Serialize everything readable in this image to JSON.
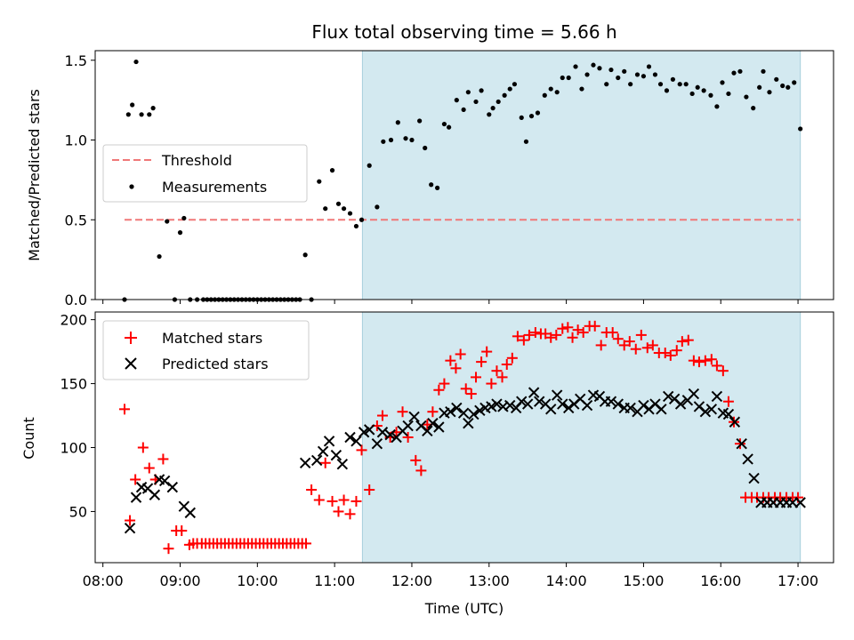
{
  "chart_data": [
    {
      "type": "scatter",
      "title": "Flux total observing time = 5.66 h",
      "xlabel": "",
      "ylabel": "Matched/Predicted stars",
      "ylim": [
        0,
        1.56
      ],
      "yticks": [
        0,
        0.5,
        1.0,
        1.5
      ],
      "ytick_labels": [
        "0.0",
        "0.5",
        "1.0",
        "1.5"
      ],
      "legend_position": "center-left",
      "shaded_region": {
        "x_start": 11.36,
        "x_end": 17.03,
        "color": "#d3e9f0"
      },
      "series": [
        {
          "name": "Threshold",
          "style": "dashed-line",
          "color": "#f07878",
          "x": [
            8.28,
            17.03
          ],
          "y": [
            0.5,
            0.5
          ]
        },
        {
          "name": "Measurements",
          "style": "dot",
          "color": "#000000",
          "x": [
            8.28,
            8.33,
            8.38,
            8.43,
            8.5,
            8.6,
            8.65,
            8.73,
            8.83,
            8.93,
            9.0,
            9.05,
            9.13,
            9.22,
            9.3,
            9.35,
            9.4,
            9.45,
            9.5,
            9.55,
            9.6,
            9.65,
            9.7,
            9.75,
            9.8,
            9.85,
            9.9,
            9.95,
            10.0,
            10.05,
            10.1,
            10.15,
            10.2,
            10.25,
            10.3,
            10.35,
            10.4,
            10.45,
            10.5,
            10.55,
            10.62,
            10.7,
            10.8,
            10.88,
            10.97,
            11.05,
            11.12,
            11.2,
            11.28,
            11.35,
            11.45,
            11.55,
            11.63,
            11.73,
            11.82,
            11.92,
            12.0,
            12.1,
            12.17,
            12.25,
            12.33,
            12.42,
            12.48,
            12.58,
            12.67,
            12.73,
            12.83,
            12.9,
            13.0,
            13.05,
            13.12,
            13.2,
            13.27,
            13.33,
            13.42,
            13.48,
            13.55,
            13.63,
            13.72,
            13.8,
            13.88,
            13.95,
            14.03,
            14.12,
            14.2,
            14.27,
            14.35,
            14.43,
            14.52,
            14.58,
            14.67,
            14.75,
            14.83,
            14.92,
            15.0,
            15.07,
            15.15,
            15.22,
            15.3,
            15.38,
            15.47,
            15.55,
            15.63,
            15.7,
            15.78,
            15.87,
            15.95,
            16.02,
            16.1,
            16.17,
            16.25,
            16.33,
            16.42,
            16.5,
            16.55,
            16.63,
            16.72,
            16.8,
            16.87,
            16.95,
            17.03
          ],
          "y": [
            0,
            1.16,
            1.22,
            1.49,
            1.16,
            1.16,
            1.2,
            0.27,
            0.49,
            0,
            0.42,
            0.51,
            0,
            0,
            0,
            0,
            0,
            0,
            0,
            0,
            0,
            0,
            0,
            0,
            0,
            0,
            0,
            0,
            0,
            0,
            0,
            0,
            0,
            0,
            0,
            0,
            0,
            0,
            0,
            0,
            0.28,
            0,
            0.74,
            0.57,
            0.81,
            0.6,
            0.57,
            0.54,
            0.46,
            0.5,
            0.84,
            0.58,
            0.99,
            1.0,
            1.11,
            1.01,
            1.0,
            1.12,
            0.95,
            0.72,
            0.7,
            1.1,
            1.08,
            1.25,
            1.19,
            1.3,
            1.24,
            1.31,
            1.16,
            1.2,
            1.24,
            1.28,
            1.32,
            1.35,
            1.14,
            0.99,
            1.15,
            1.17,
            1.28,
            1.32,
            1.3,
            1.39,
            1.39,
            1.46,
            1.32,
            1.41,
            1.47,
            1.45,
            1.35,
            1.44,
            1.39,
            1.43,
            1.35,
            1.41,
            1.4,
            1.46,
            1.41,
            1.35,
            1.31,
            1.38,
            1.35,
            1.35,
            1.29,
            1.33,
            1.31,
            1.28,
            1.21,
            1.36,
            1.29,
            1.42,
            1.43,
            1.27,
            1.2,
            1.33,
            1.43,
            1.3,
            1.38,
            1.34,
            1.33,
            1.36,
            1.07
          ]
        }
      ]
    },
    {
      "type": "scatter",
      "title": "",
      "xlabel": "Time (UTC)",
      "ylabel": "Count",
      "ylim": [
        10,
        206
      ],
      "yticks": [
        50,
        100,
        150,
        200
      ],
      "ytick_labels": [
        "50",
        "100",
        "150",
        "200"
      ],
      "xlim": [
        7.9,
        17.46
      ],
      "xticks": [
        8,
        9,
        10,
        11,
        12,
        13,
        14,
        15,
        16,
        17
      ],
      "xtick_labels": [
        "08:00",
        "09:00",
        "10:00",
        "11:00",
        "12:00",
        "13:00",
        "14:00",
        "15:00",
        "16:00",
        "17:00"
      ],
      "legend_position": "top-left",
      "shaded_region": {
        "x_start": 11.36,
        "x_end": 17.03,
        "color": "#d3e9f0"
      },
      "series": [
        {
          "name": "Matched stars",
          "style": "plus",
          "color": "#ff0000",
          "x": [
            8.28,
            8.35,
            8.42,
            8.52,
            8.6,
            8.68,
            8.78,
            8.85,
            8.95,
            9.02,
            9.12,
            9.17,
            9.22,
            9.28,
            9.33,
            9.38,
            9.43,
            9.48,
            9.53,
            9.58,
            9.63,
            9.68,
            9.73,
            9.78,
            9.83,
            9.88,
            9.93,
            9.98,
            10.03,
            10.08,
            10.13,
            10.18,
            10.23,
            10.28,
            10.33,
            10.38,
            10.43,
            10.48,
            10.53,
            10.58,
            10.63,
            10.7,
            10.8,
            10.88,
            10.97,
            11.05,
            11.12,
            11.2,
            11.28,
            11.35,
            11.45,
            11.55,
            11.62,
            11.72,
            11.8,
            11.88,
            11.95,
            12.05,
            12.12,
            12.2,
            12.27,
            12.35,
            12.42,
            12.5,
            12.57,
            12.63,
            12.7,
            12.77,
            12.83,
            12.9,
            12.97,
            13.03,
            13.1,
            13.17,
            13.23,
            13.3,
            13.37,
            13.45,
            13.52,
            13.6,
            13.67,
            13.73,
            13.8,
            13.87,
            13.95,
            14.02,
            14.08,
            14.15,
            14.22,
            14.3,
            14.37,
            14.45,
            14.52,
            14.6,
            14.67,
            14.75,
            14.82,
            14.9,
            14.97,
            15.05,
            15.12,
            15.2,
            15.28,
            15.35,
            15.43,
            15.5,
            15.58,
            15.65,
            15.72,
            15.8,
            15.88,
            15.95,
            16.03,
            16.1,
            16.17,
            16.25,
            16.32,
            16.4,
            16.47,
            16.55,
            16.62,
            16.7,
            16.77,
            16.85,
            16.93,
            17.0
          ],
          "y": [
            130,
            43,
            75,
            100,
            84,
            75,
            91,
            21,
            35,
            35,
            24,
            25,
            25,
            25,
            25,
            25,
            25,
            25,
            25,
            25,
            25,
            25,
            25,
            25,
            25,
            25,
            25,
            25,
            25,
            25,
            25,
            25,
            25,
            25,
            25,
            25,
            25,
            25,
            25,
            25,
            25,
            67,
            59,
            88,
            58,
            50,
            59,
            48,
            58,
            98,
            67,
            117,
            125,
            108,
            112,
            128,
            108,
            90,
            82,
            118,
            128,
            145,
            150,
            168,
            162,
            173,
            146,
            142,
            155,
            167,
            175,
            150,
            160,
            155,
            165,
            170,
            187,
            184,
            188,
            190,
            189,
            189,
            186,
            188,
            193,
            194,
            186,
            192,
            190,
            195,
            195,
            180,
            190,
            190,
            185,
            180,
            183,
            177,
            188,
            178,
            180,
            174,
            174,
            172,
            176,
            183,
            184,
            168,
            167,
            168,
            169,
            164,
            160,
            136,
            120,
            103,
            61,
            61,
            61,
            61,
            61,
            61,
            61,
            61,
            61,
            61
          ],
          "y_note": ""
        },
        {
          "name": "Predicted stars",
          "style": "x",
          "color": "#000000",
          "x": [
            8.35,
            8.43,
            8.5,
            8.58,
            8.67,
            8.73,
            8.8,
            8.9,
            9.05,
            9.13,
            10.62,
            10.77,
            10.85,
            10.93,
            11.02,
            11.1,
            11.2,
            11.28,
            11.38,
            11.45,
            11.55,
            11.62,
            11.72,
            11.8,
            11.88,
            11.95,
            12.03,
            12.12,
            12.2,
            12.27,
            12.35,
            12.42,
            12.5,
            12.58,
            12.67,
            12.73,
            12.8,
            12.88,
            12.95,
            13.03,
            13.1,
            13.18,
            13.27,
            13.35,
            13.42,
            13.5,
            13.58,
            13.65,
            13.73,
            13.8,
            13.88,
            13.95,
            14.03,
            14.1,
            14.18,
            14.27,
            14.35,
            14.43,
            14.5,
            14.58,
            14.67,
            14.75,
            14.83,
            14.92,
            15.0,
            15.07,
            15.15,
            15.23,
            15.32,
            15.4,
            15.48,
            15.57,
            15.65,
            15.72,
            15.8,
            15.88,
            15.95,
            16.03,
            16.1,
            16.18,
            16.27,
            16.35,
            16.43,
            16.52,
            16.6,
            16.68,
            16.77,
            16.85,
            16.93,
            17.03
          ],
          "y": [
            37,
            61,
            69,
            68,
            63,
            75,
            74,
            69,
            54,
            49,
            88,
            90,
            97,
            105,
            94,
            87,
            108,
            105,
            112,
            114,
            103,
            112,
            110,
            108,
            113,
            117,
            124,
            117,
            113,
            119,
            116,
            127,
            128,
            131,
            127,
            119,
            126,
            129,
            131,
            132,
            134,
            132,
            133,
            131,
            136,
            134,
            143,
            136,
            134,
            130,
            141,
            134,
            131,
            134,
            138,
            133,
            141,
            140,
            136,
            136,
            134,
            131,
            131,
            128,
            133,
            130,
            134,
            130,
            140,
            138,
            134,
            137,
            142,
            132,
            128,
            130,
            140,
            127,
            126,
            120,
            103,
            91,
            76,
            57,
            57,
            57,
            57,
            57,
            57,
            57
          ],
          "y_note": ""
        }
      ]
    }
  ]
}
